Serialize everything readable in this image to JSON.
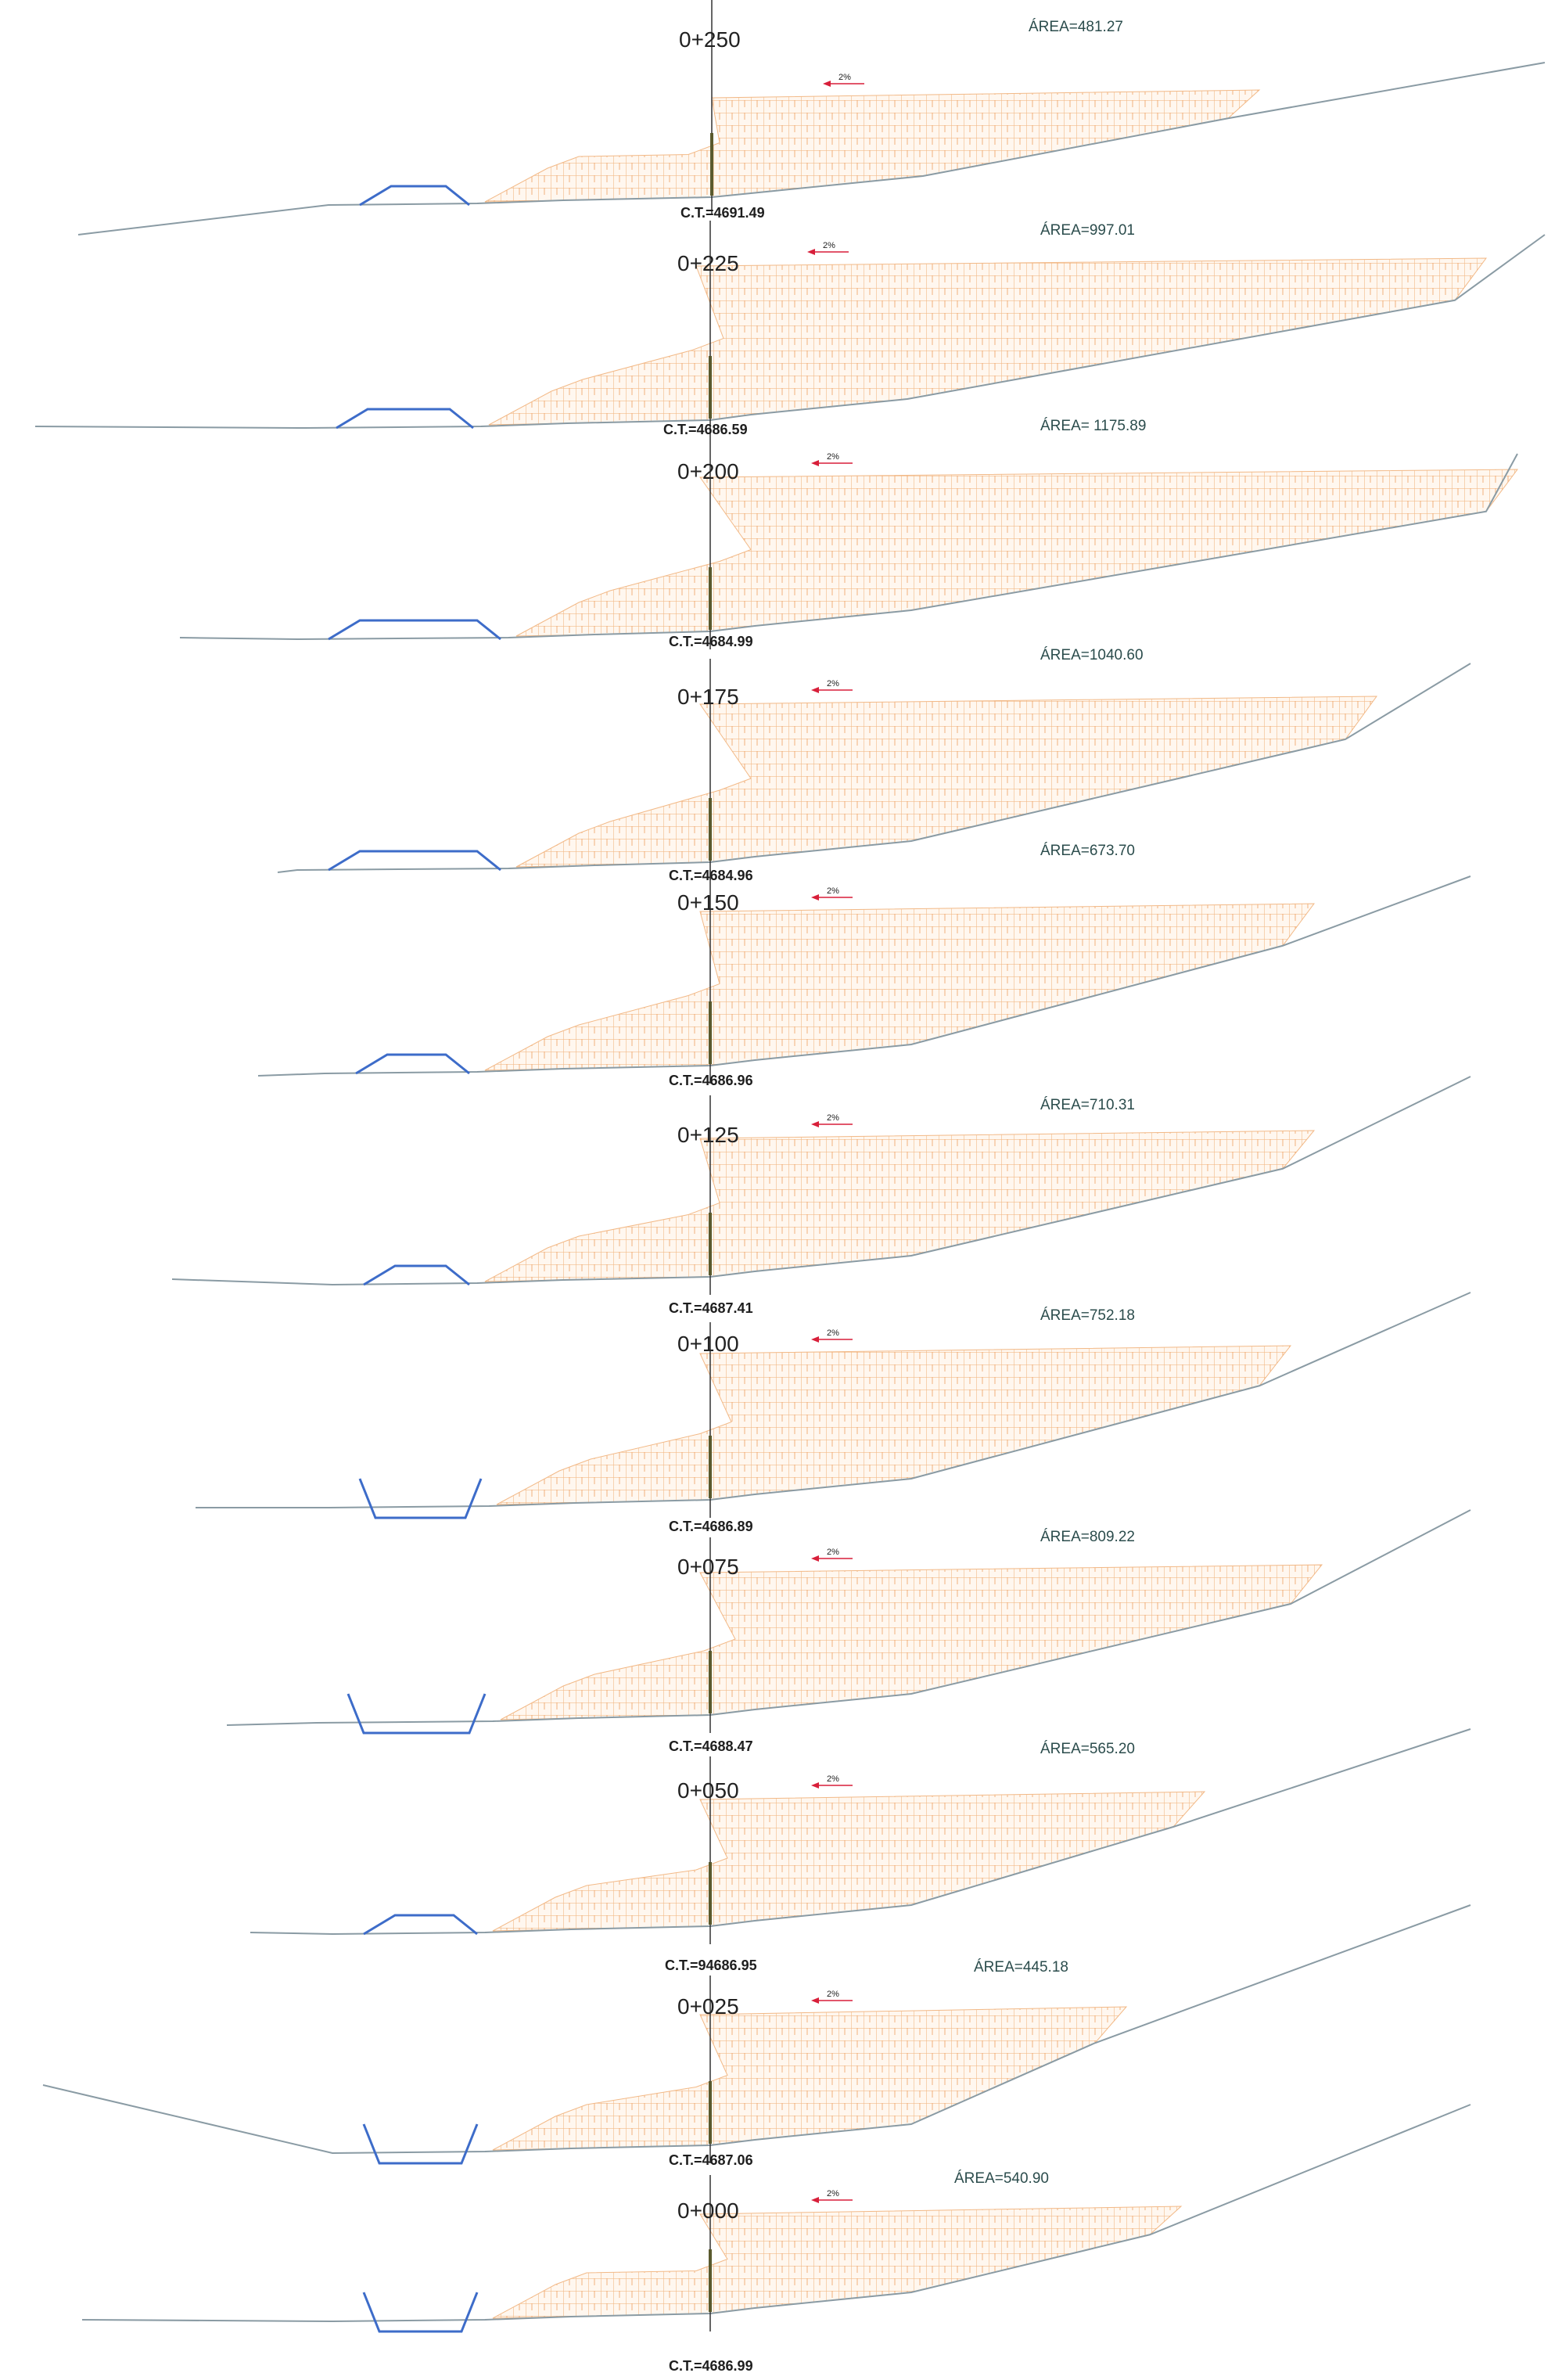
{
  "colors": {
    "hatch": "#f2b987",
    "hatch_dark": "#ef9f5f",
    "ground": "#8a9ba4",
    "canal": "#3d6cc9",
    "axis": "#333333",
    "slope_arrow": "#d81f3a"
  },
  "slope_label": "2%",
  "sections": [
    {
      "station": "0+250",
      "area": "ÁREA=481.27",
      "ct": "C.T.=4691.49"
    },
    {
      "station": "0+225",
      "area": "ÁREA=997.01",
      "ct": "C.T.=4686.59"
    },
    {
      "station": "0+200",
      "area": "ÁREA= 1175.89",
      "ct": "C.T.=4684.99"
    },
    {
      "station": "0+175",
      "area": "ÁREA=1040.60",
      "ct": "C.T.=4684.96"
    },
    {
      "station": "0+150",
      "area": "ÁREA=673.70",
      "ct": "C.T.=4686.96"
    },
    {
      "station": "0+125",
      "area": "ÁREA=710.31",
      "ct": "C.T.=4687.41"
    },
    {
      "station": "0+100",
      "area": "ÁREA=752.18",
      "ct": "C.T.=4686.89"
    },
    {
      "station": "0+075",
      "area": "ÁREA=809.22",
      "ct": "C.T.=4688.47"
    },
    {
      "station": "0+050",
      "area": "ÁREA=565.20",
      "ct": "C.T.=94686.95"
    },
    {
      "station": "0+025",
      "area": "ÁREA=445.18",
      "ct": "C.T.=4687.06"
    },
    {
      "station": "0+000",
      "area": "ÁREA=540.90",
      "ct": "C.T.=4686.99"
    }
  ]
}
